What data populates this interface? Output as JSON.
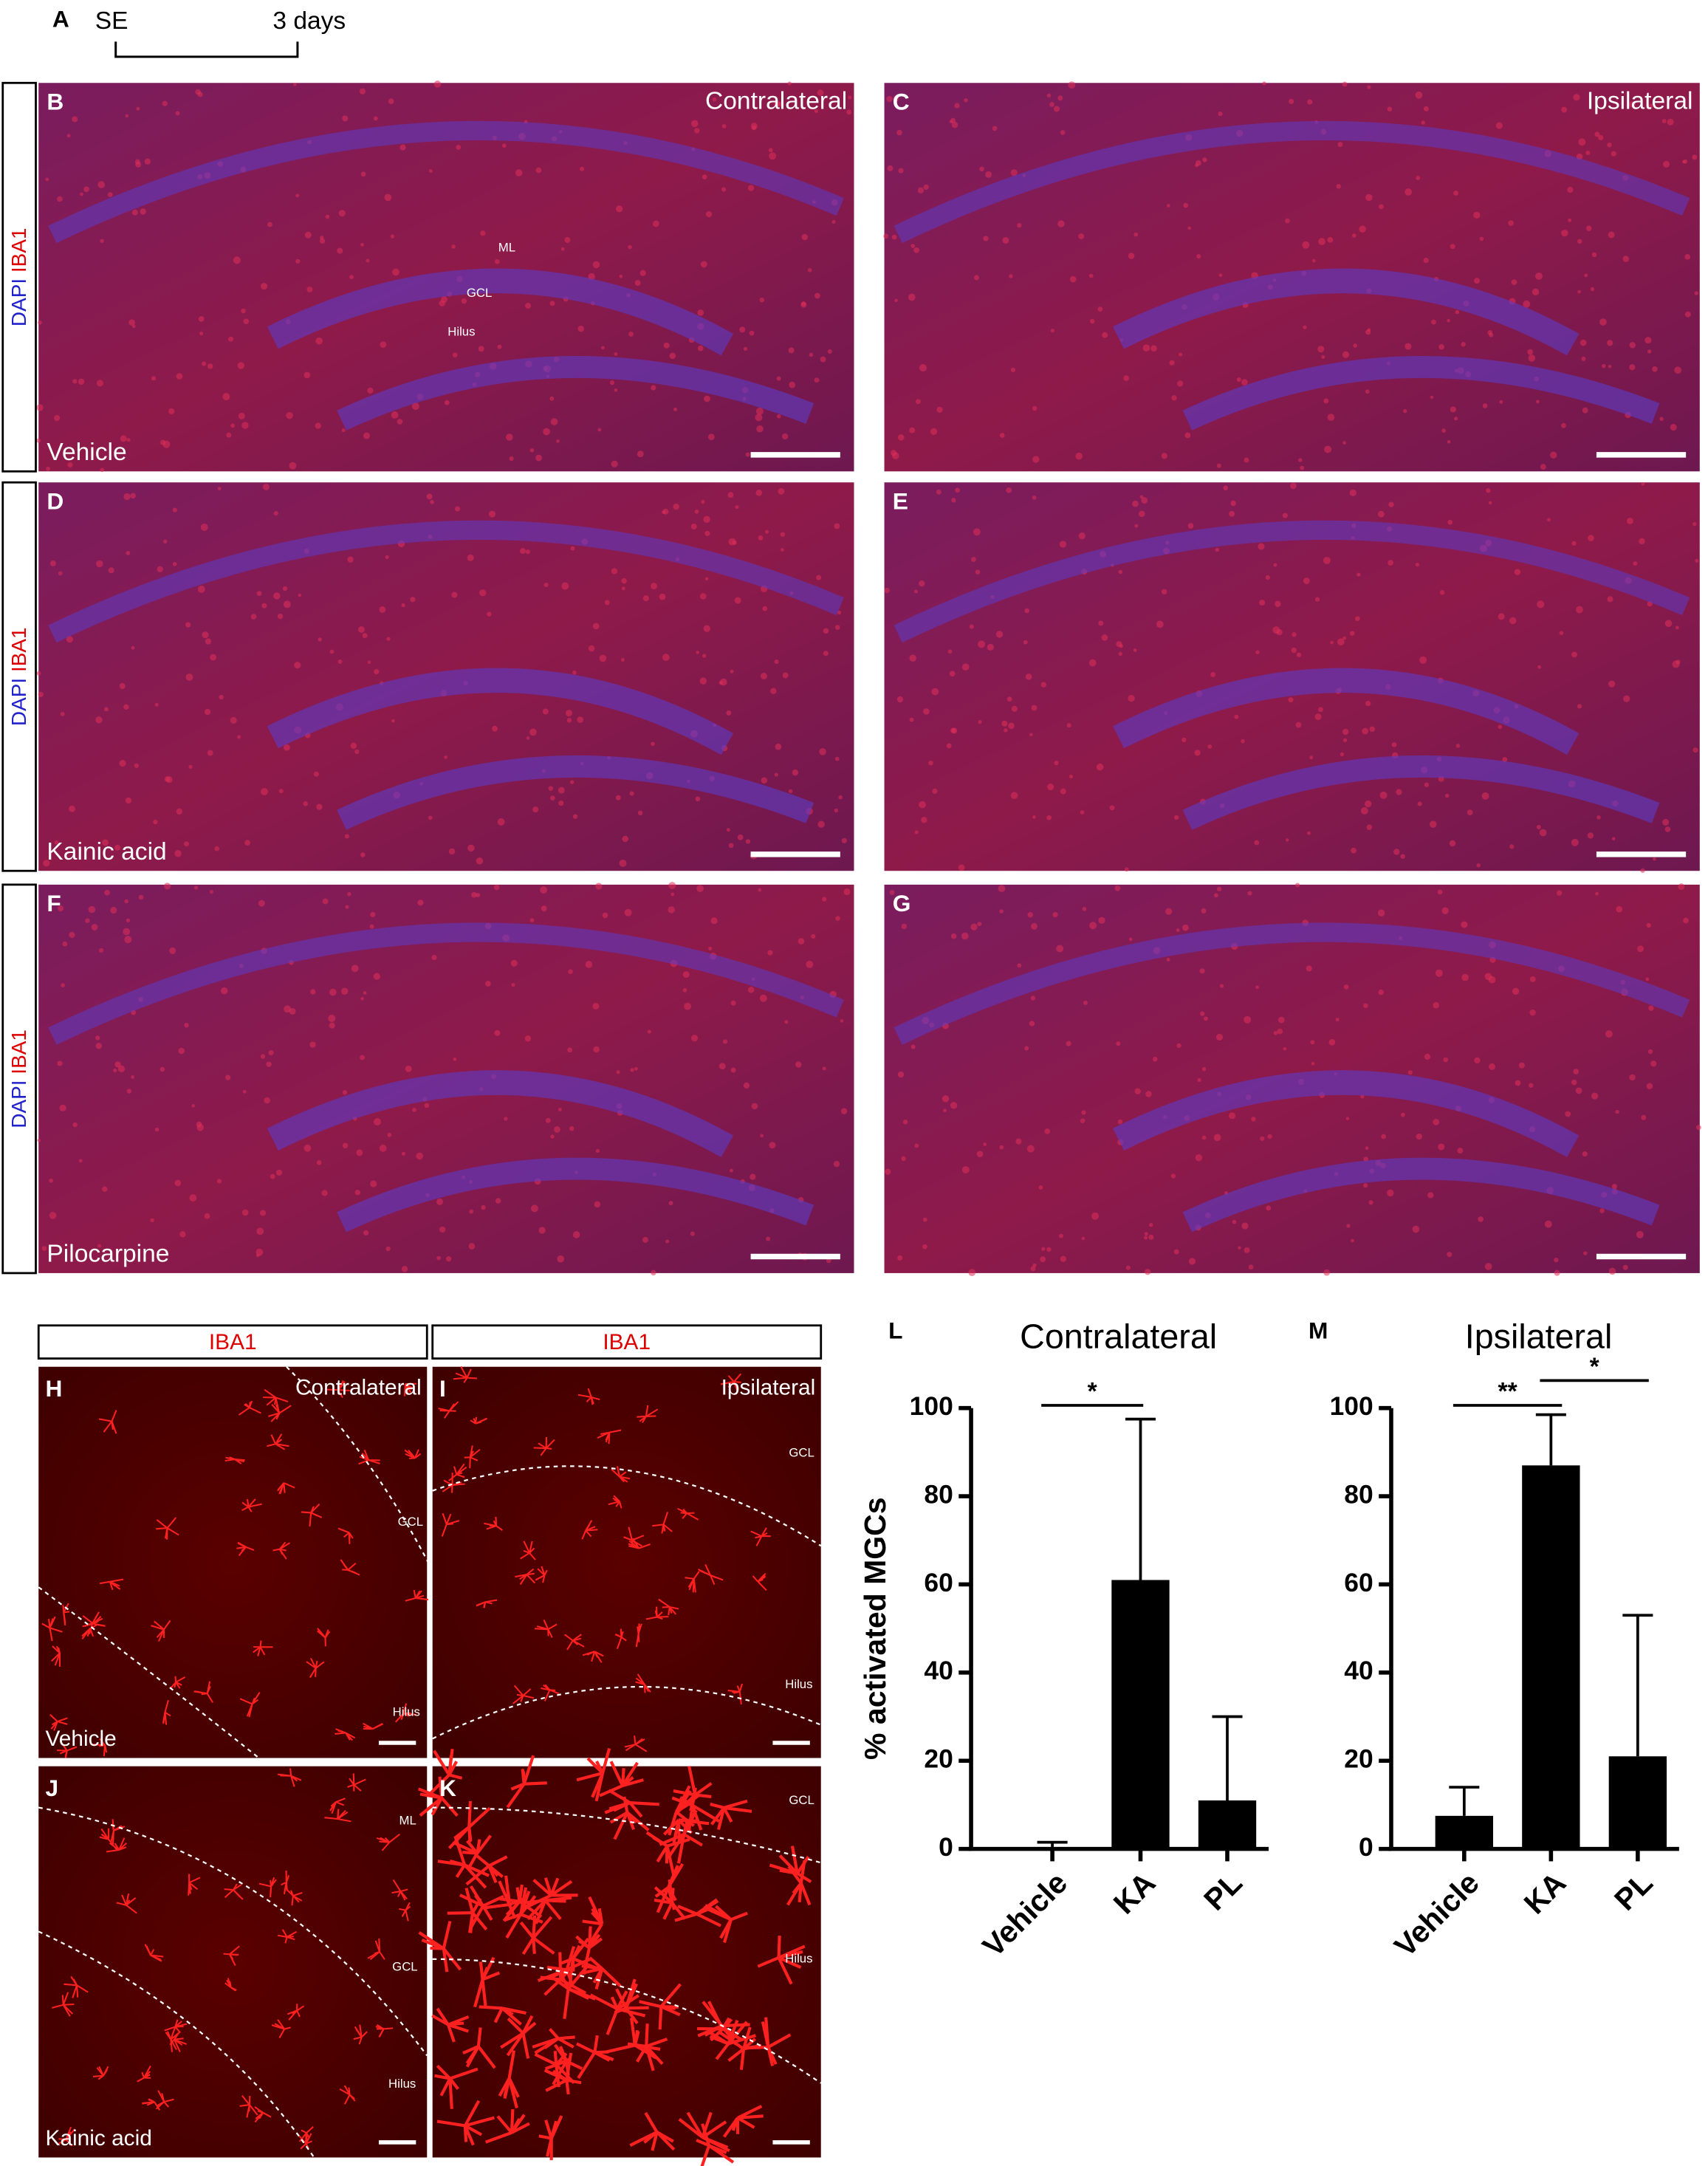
{
  "schema": {
    "letter": "A",
    "start": "SE",
    "end": "3 days"
  },
  "stain_labels": [
    {
      "dapi": "DAPI",
      "iba1": "IBA1"
    },
    {
      "dapi": "DAPI",
      "iba1": "IBA1"
    },
    {
      "dapi": "DAPI",
      "iba1": "IBA1"
    }
  ],
  "overview_panels": [
    {
      "letter": "B",
      "side": "Contralateral",
      "treatment": "Vehicle",
      "regions": [
        "ML",
        "GCL",
        "Hilus"
      ]
    },
    {
      "letter": "C",
      "side": "Ipsilateral"
    },
    {
      "letter": "D",
      "treatment": "Kainic acid"
    },
    {
      "letter": "E"
    },
    {
      "letter": "F",
      "treatment": "Pilocarpine"
    },
    {
      "letter": "G"
    }
  ],
  "zoom_headers": [
    "IBA1",
    "IBA1"
  ],
  "zoom_panels": [
    {
      "letter": "H",
      "side": "Contralateral",
      "treatment": "Vehicle",
      "regions": [
        "GCL",
        "Hilus"
      ]
    },
    {
      "letter": "I",
      "side": "Ipsilateral",
      "regions": [
        "GCL",
        "Hilus"
      ]
    },
    {
      "letter": "J",
      "treatment": "Kainic acid",
      "regions": [
        "ML",
        "GCL",
        "Hilus"
      ]
    },
    {
      "letter": "K",
      "regions": [
        "GCL",
        "Hilus"
      ]
    }
  ],
  "chart_data": [
    {
      "type": "bar",
      "letter": "L",
      "title": "Contralateral",
      "ylabel": "% activated MGCs",
      "categories": [
        "Vehicle",
        "KA",
        "PL"
      ],
      "values": [
        0,
        61,
        11
      ],
      "errors": [
        1.5,
        36.5,
        19
      ],
      "color": "#000000",
      "ylim": [
        0,
        100
      ],
      "yticks": [
        0,
        20,
        40,
        60,
        80,
        100
      ],
      "significance": [
        {
          "label": "*",
          "between": [
            "Vehicle",
            "KA"
          ]
        }
      ]
    },
    {
      "type": "bar",
      "letter": "M",
      "title": "Ipsilateral",
      "categories": [
        "Vehicle",
        "KA",
        "PL"
      ],
      "values": [
        7.5,
        87,
        21
      ],
      "errors": [
        6.5,
        11.5,
        32
      ],
      "color": "#000000",
      "ylim": [
        0,
        100
      ],
      "yticks": [
        0,
        20,
        40,
        60,
        80,
        100
      ],
      "significance": [
        {
          "label": "**",
          "between": [
            "Vehicle",
            "KA"
          ]
        },
        {
          "label": "*",
          "between": [
            "KA",
            "PL"
          ]
        }
      ]
    }
  ]
}
